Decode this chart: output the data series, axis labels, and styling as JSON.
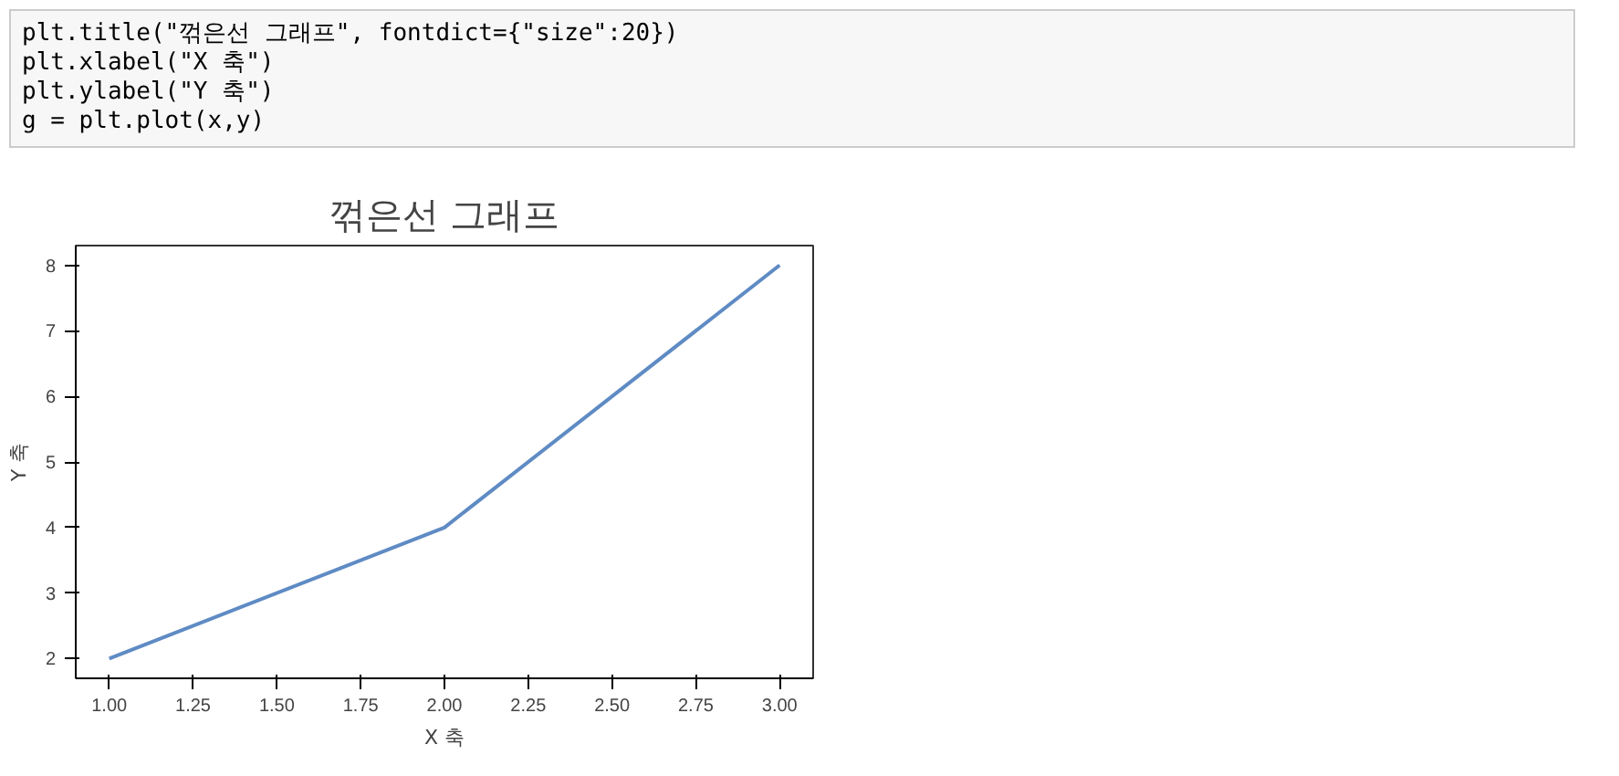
{
  "chart_data": {
    "type": "line",
    "title": "꺾은선 그래프",
    "xlabel": "X 축",
    "ylabel": "Y 축",
    "annotations": [
      "plt.title(\"꺾은선 그래프\", fontdict={\"size\":20})",
      "plt.xlabel(\"X 축\")",
      "plt.ylabel(\"Y 축\")",
      "g = plt.plot(x,y)"
    ],
    "x": [
      1,
      2,
      3
    ],
    "series": [
      {
        "color": "#5f8bc4",
        "values": [
          2,
          4,
          8
        ]
      }
    ],
    "xlim": [
      0.9,
      3.1
    ],
    "ylim": [
      1.7,
      8.3
    ],
    "xticks": [
      {
        "value": 1,
        "label": "1.00"
      },
      {
        "value": 1.25,
        "label": "1.25"
      },
      {
        "value": 1.5,
        "label": "1.50"
      },
      {
        "value": 1.75,
        "label": "1.75"
      },
      {
        "value": 2,
        "label": "2.00"
      },
      {
        "value": 2.25,
        "label": "2.25"
      },
      {
        "value": 2.5,
        "label": "2.50"
      },
      {
        "value": 2.75,
        "label": "2.75"
      },
      {
        "value": 3,
        "label": "3.00"
      }
    ],
    "yticks": [
      2,
      3,
      4,
      5,
      6,
      7,
      8
    ],
    "grid": false,
    "marker": "none",
    "line_style": "solid"
  }
}
